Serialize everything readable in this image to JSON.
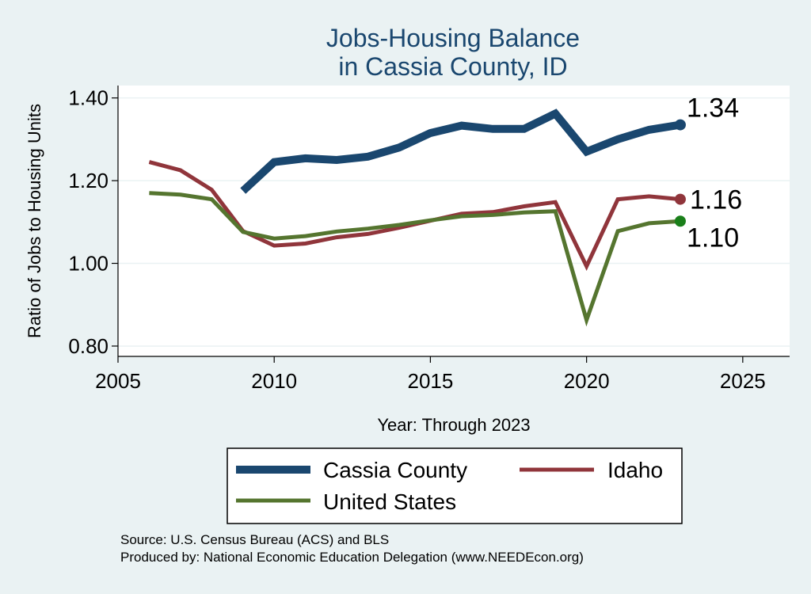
{
  "chart_data": {
    "type": "line",
    "title": [
      "Jobs-Housing Balance",
      "in Cassia County, ID"
    ],
    "xlabel": "Year: Through 2023",
    "ylabel": "Ratio of Jobs to Housing Units",
    "xlim": [
      2005,
      2026.5
    ],
    "ylim": [
      0.775,
      1.43
    ],
    "xticks": [
      2005,
      2010,
      2015,
      2020,
      2025
    ],
    "yticks": [
      0.8,
      1.0,
      1.2,
      1.4
    ],
    "ytick_labels": [
      "0.80",
      "1.00",
      "1.20",
      "1.40"
    ],
    "grid": true,
    "legend_position": "bottom",
    "series": [
      {
        "name": "Cassia County",
        "color": "#1a476f",
        "x": [
          2009,
          2010,
          2011,
          2012,
          2013,
          2014,
          2015,
          2016,
          2017,
          2018,
          2019,
          2020,
          2021,
          2022,
          2023
        ],
        "y": [
          1.175,
          1.245,
          1.254,
          1.25,
          1.258,
          1.28,
          1.315,
          1.333,
          1.325,
          1.325,
          1.362,
          1.27,
          1.3,
          1.323,
          1.335
        ],
        "end_label": "1.34"
      },
      {
        "name": "Idaho",
        "color": "#90353b",
        "x": [
          2006,
          2007,
          2008,
          2009,
          2010,
          2011,
          2012,
          2013,
          2014,
          2015,
          2016,
          2017,
          2018,
          2019,
          2020,
          2021,
          2022,
          2023
        ],
        "y": [
          1.245,
          1.225,
          1.178,
          1.078,
          1.043,
          1.048,
          1.063,
          1.071,
          1.086,
          1.103,
          1.12,
          1.124,
          1.138,
          1.148,
          0.993,
          1.155,
          1.162,
          1.155
        ],
        "end_label": "1.16"
      },
      {
        "name": "United States",
        "color": "#55752f",
        "marker_color": "#1a7f1a",
        "x": [
          2006,
          2007,
          2008,
          2009,
          2010,
          2011,
          2012,
          2013,
          2014,
          2015,
          2016,
          2017,
          2018,
          2019,
          2020,
          2021,
          2022,
          2023
        ],
        "y": [
          1.17,
          1.166,
          1.155,
          1.076,
          1.06,
          1.066,
          1.077,
          1.084,
          1.093,
          1.104,
          1.114,
          1.117,
          1.123,
          1.126,
          0.863,
          1.078,
          1.097,
          1.102
        ],
        "end_label": "1.10"
      }
    ]
  },
  "footer": {
    "source": "Source: U.S. Census Bureau (ACS) and BLS",
    "producer": "Produced by: National Economic Education Delegation (www.NEEDEcon.org)"
  }
}
